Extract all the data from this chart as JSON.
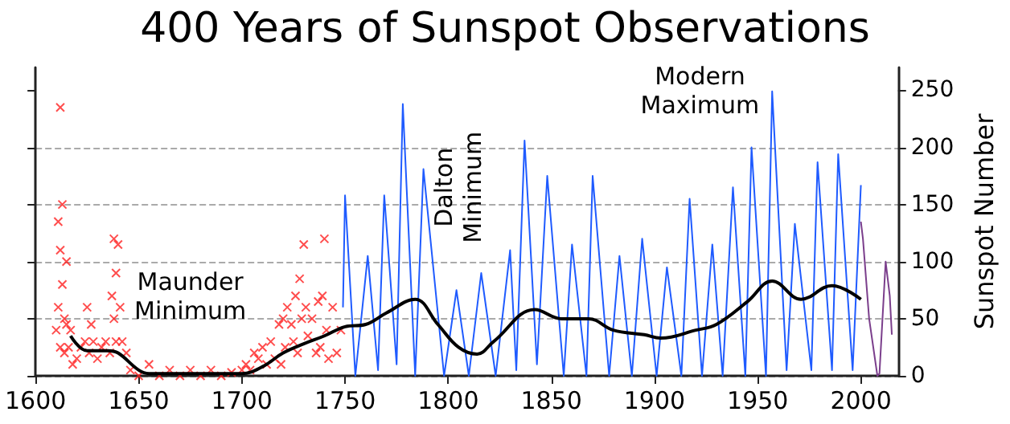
{
  "chart_data": {
    "type": "line",
    "title": "400 Years of Sunspot Observations",
    "ylabel": "Sunspot Number",
    "xlim": [
      1600,
      2018
    ],
    "xticks": [
      1600,
      1650,
      1700,
      1750,
      1800,
      1850,
      1900,
      1950,
      2000
    ],
    "ylim": [
      0,
      270
    ],
    "yticks": [
      0,
      50,
      100,
      150,
      200,
      250
    ],
    "grid": "y",
    "annotations": [
      "Maunder Minimum",
      "Dalton Minimum",
      "Modern Maximum"
    ],
    "series": [
      {
        "type": "scatter",
        "marker": "cross",
        "color": "#ff2020",
        "x": [
          1610,
          1611,
          1611,
          1612,
          1612,
          1612,
          1613,
          1613,
          1614,
          1614,
          1615,
          1615,
          1616,
          1617,
          1618,
          1620,
          1622,
          1624,
          1625,
          1626,
          1627,
          1628,
          1630,
          1632,
          1634,
          1636,
          1637,
          1638,
          1638,
          1639,
          1639,
          1640,
          1641,
          1642,
          1644,
          1646,
          1650,
          1655,
          1660,
          1665,
          1670,
          1675,
          1680,
          1685,
          1690,
          1695,
          1700,
          1702,
          1704,
          1706,
          1708,
          1710,
          1712,
          1714,
          1716,
          1718,
          1719,
          1720,
          1721,
          1722,
          1724,
          1725,
          1726,
          1727,
          1728,
          1729,
          1730,
          1731,
          1732,
          1734,
          1736,
          1737,
          1738,
          1739,
          1740,
          1741,
          1742,
          1744,
          1746,
          1748
        ],
        "values": [
          40,
          135,
          60,
          235,
          110,
          25,
          80,
          150,
          50,
          20,
          100,
          45,
          25,
          40,
          10,
          15,
          25,
          30,
          60,
          20,
          45,
          30,
          15,
          25,
          30,
          20,
          70,
          120,
          50,
          90,
          30,
          115,
          60,
          30,
          20,
          5,
          0,
          10,
          0,
          5,
          0,
          5,
          0,
          5,
          0,
          3,
          5,
          10,
          5,
          20,
          15,
          25,
          10,
          30,
          15,
          45,
          10,
          50,
          25,
          60,
          45,
          30,
          70,
          20,
          85,
          50,
          115,
          60,
          35,
          50,
          20,
          65,
          25,
          70,
          120,
          40,
          15,
          60,
          20,
          40
        ]
      },
      {
        "color": "#1f5bff",
        "x": [
          1749,
          1750,
          1755,
          1761,
          1766,
          1769,
          1775,
          1778,
          1784,
          1788,
          1798,
          1804,
          1810,
          1816,
          1823,
          1830,
          1833,
          1837,
          1843,
          1848,
          1856,
          1860,
          1867,
          1870,
          1878,
          1883,
          1889,
          1894,
          1901,
          1906,
          1913,
          1917,
          1923,
          1928,
          1933,
          1938,
          1944,
          1947,
          1954,
          1957,
          1964,
          1968,
          1976,
          1979,
          1986,
          1989,
          1996,
          2000
        ],
        "values": [
          60,
          158,
          0,
          105,
          5,
          158,
          10,
          238,
          0,
          181,
          0,
          75,
          0,
          90,
          0,
          110,
          5,
          206,
          10,
          175,
          0,
          115,
          0,
          175,
          0,
          105,
          0,
          120,
          0,
          95,
          0,
          155,
          0,
          115,
          0,
          165,
          0,
          200,
          0,
          249,
          5,
          133,
          5,
          187,
          5,
          194,
          5,
          167
        ]
      },
      {
        "color": "#7b3f8c",
        "x": [
          2000,
          2001,
          2004,
          2008,
          2009,
          2012,
          2014,
          2015
        ],
        "values": [
          135,
          120,
          50,
          0,
          2,
          100,
          70,
          36
        ]
      },
      {
        "color": "#000000",
        "x": [
          1617,
          1625,
          1635,
          1640,
          1650,
          1655,
          1700,
          1710,
          1720,
          1730,
          1740,
          1750,
          1760,
          1770,
          1784,
          1795,
          1805,
          1814,
          1822,
          1842,
          1855,
          1868,
          1880,
          1895,
          1903,
          1920,
          1930,
          1945,
          1957,
          1971,
          1986,
          2000
        ],
        "values": [
          35,
          22,
          22,
          20,
          5,
          2,
          2,
          8,
          20,
          28,
          35,
          43,
          45,
          55,
          67,
          45,
          25,
          19,
          30,
          58,
          50,
          50,
          40,
          36,
          33,
          40,
          45,
          65,
          83,
          67,
          79,
          67
        ]
      }
    ]
  }
}
